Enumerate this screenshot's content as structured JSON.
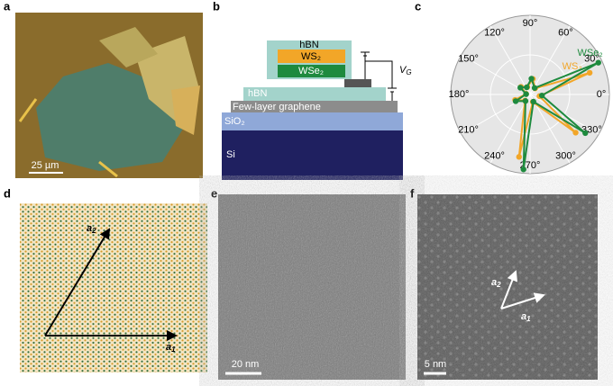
{
  "panels": {
    "a": {
      "letter": "a",
      "scale_bar": "25 µm"
    },
    "b": {
      "letter": "b",
      "hbn_top": "hBN",
      "ws2": "WS₂",
      "wse2": "WSe₂",
      "hbn_bottom": "hBN",
      "graphene": "Few-layer graphene",
      "sio2": "SiO₂",
      "si": "Si",
      "gate": {
        "main": "V",
        "sub": "G"
      }
    },
    "c": {
      "letter": "c"
    },
    "d": {
      "letter": "d",
      "a1": {
        "main": "a",
        "sub": "1"
      },
      "a2": {
        "main": "a",
        "sub": "2"
      }
    },
    "e": {
      "letter": "e",
      "scale_bar": "20 nm"
    },
    "f": {
      "letter": "f",
      "scale_bar": "5 nm",
      "a1": {
        "main": "a",
        "sub": "1"
      },
      "a2": {
        "main": "a",
        "sub": "2"
      }
    }
  },
  "chart_data": {
    "type": "polar",
    "rlim": [
      0,
      1
    ],
    "theta_ticks": [
      {
        "value": 90,
        "label": "90°"
      },
      {
        "value": 60,
        "label": "60°"
      },
      {
        "value": 30,
        "label": "30°"
      },
      {
        "value": 0,
        "label": "0°"
      },
      {
        "value": 330,
        "label": "330°"
      },
      {
        "value": 300,
        "label": "300°"
      },
      {
        "value": 270,
        "label": "270°"
      },
      {
        "value": 240,
        "label": "240°"
      },
      {
        "value": 210,
        "label": "210°"
      },
      {
        "value": 180,
        "label": "180°"
      },
      {
        "value": 150,
        "label": "150°"
      },
      {
        "value": 120,
        "label": "120°"
      }
    ],
    "series": [
      {
        "name": "WS₂",
        "color": "#f2a628",
        "theta": [
          20,
          50,
          80,
          110,
          140,
          170,
          200,
          230,
          260,
          290,
          320,
          350
        ],
        "values": [
          0.8,
          0.1,
          0.2,
          0.1,
          0.15,
          0.05,
          0.2,
          0.1,
          0.8,
          0.1,
          0.75,
          0.12
        ]
      },
      {
        "name": "WSe₂",
        "color": "#1e8a3e",
        "theta": [
          25,
          55,
          85,
          115,
          145,
          175,
          205,
          235,
          265,
          295,
          325,
          355
        ],
        "values": [
          0.95,
          0.1,
          0.2,
          0.1,
          0.15,
          0.05,
          0.2,
          0.1,
          0.95,
          0.1,
          0.85,
          0.15
        ]
      }
    ]
  }
}
